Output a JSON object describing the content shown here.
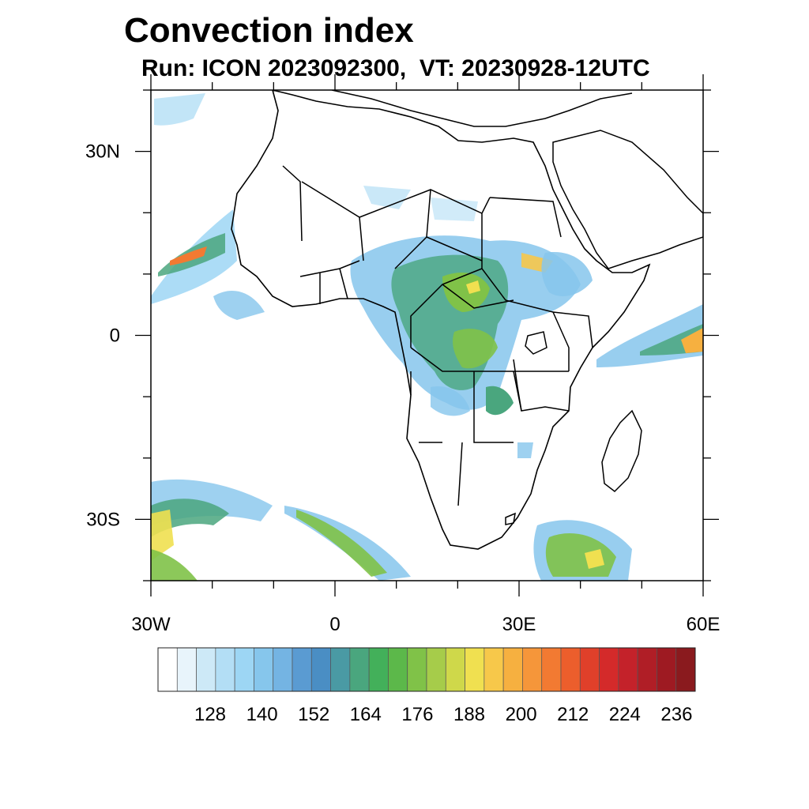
{
  "title": "Convection index",
  "subtitle": "Run: ICON 2023092300,  VT: 20230928-12UTC",
  "axes": {
    "lon_ticks": [
      {
        "value": -30,
        "label": "30W"
      },
      {
        "value": 0,
        "label": "0"
      },
      {
        "value": 30,
        "label": "30E"
      },
      {
        "value": 60,
        "label": "60E"
      }
    ],
    "lat_ticks": [
      {
        "value": 30,
        "label": "30N"
      },
      {
        "value": 0,
        "label": "0"
      },
      {
        "value": -30,
        "label": "30S"
      }
    ],
    "lon_range": [
      -30,
      60
    ],
    "lat_range": [
      -40,
      40
    ]
  },
  "colorbar": {
    "colors": [
      "#ffffff",
      "#e8f4fb",
      "#cde9f7",
      "#b3def5",
      "#9dd6f4",
      "#86c6ec",
      "#74b4e3",
      "#5a9bd2",
      "#4a8ec4",
      "#4a9aa4",
      "#4aa67e",
      "#43b05a",
      "#5cb84a",
      "#80c248",
      "#a6cc4a",
      "#cfd84a",
      "#f0e050",
      "#f7c84a",
      "#f6b040",
      "#f5963a",
      "#f27a32",
      "#ec5e2c",
      "#e0402a",
      "#d42a2a",
      "#c4222a",
      "#b01e26",
      "#9e1a22",
      "#8a1a1e"
    ],
    "labels": [
      "128",
      "140",
      "152",
      "164",
      "176",
      "188",
      "200",
      "212",
      "224",
      "236"
    ]
  }
}
